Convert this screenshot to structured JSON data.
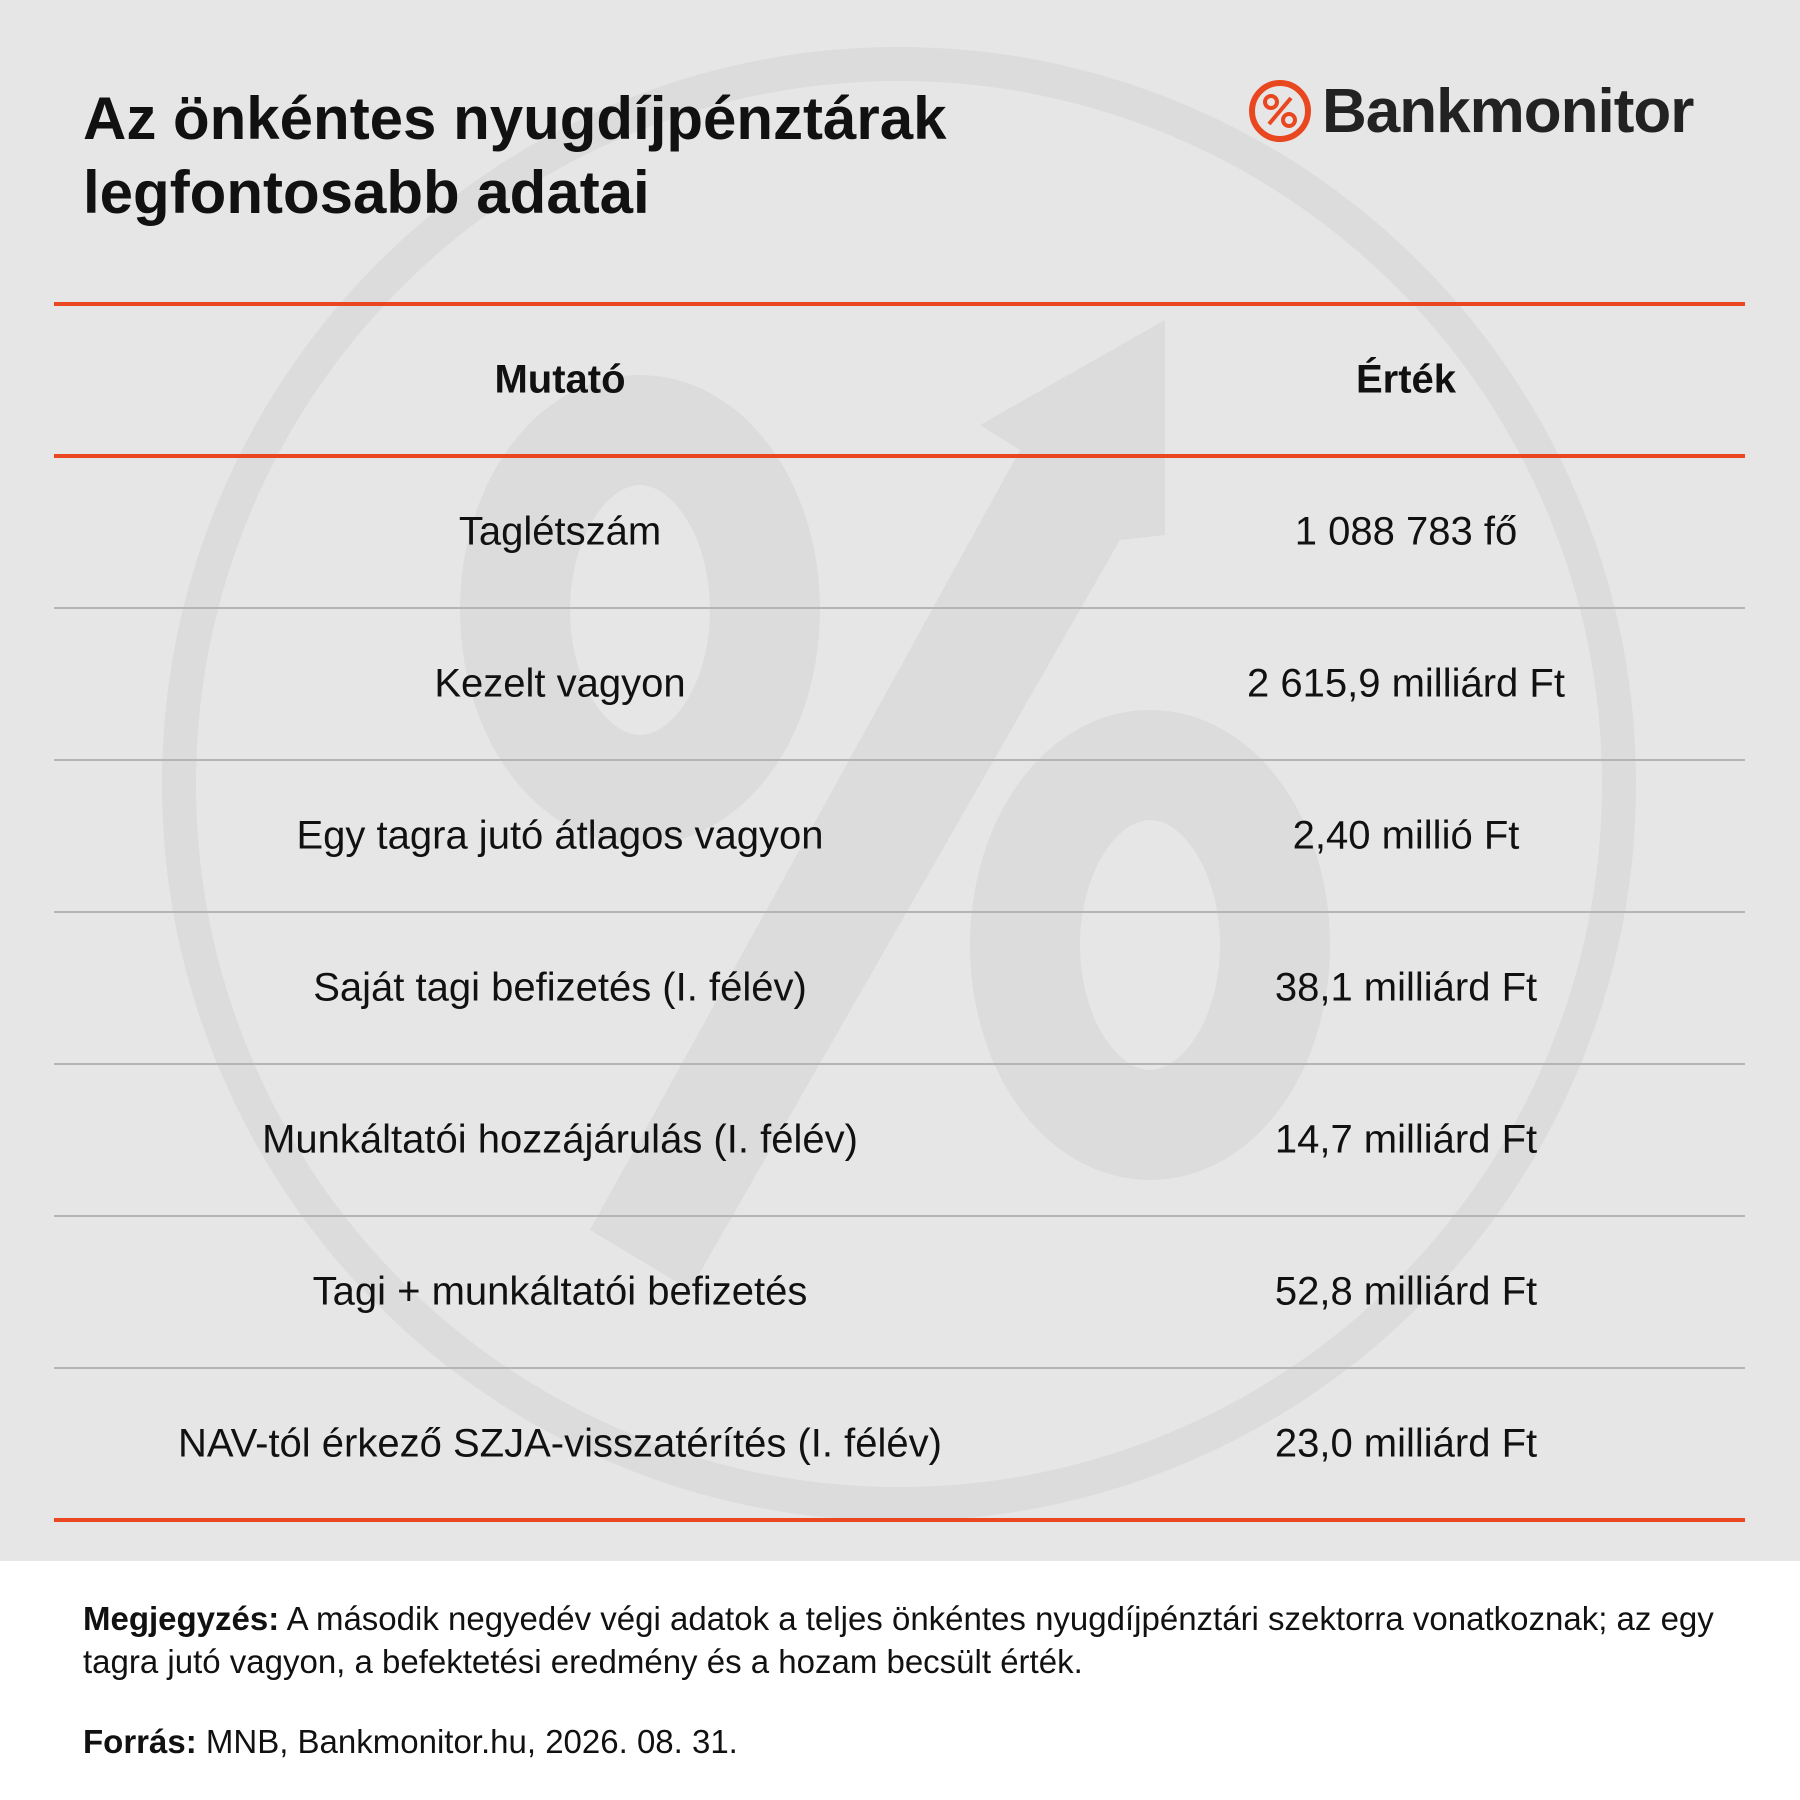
{
  "header": {
    "title_lines": [
      "Az önkéntes nyugdíjpénztárak",
      "legfontosabb adatai"
    ],
    "logo": "Bankmonitor"
  },
  "table": {
    "columns": [
      "Mutató",
      "Érték"
    ],
    "rows": [
      [
        "Taglétszám",
        "1 088 783 fő"
      ],
      [
        "Kezelt vagyon",
        "2 615,9 milliárd Ft"
      ],
      [
        "Egy tagra jutó átlagos vagyon",
        "2,40 millió Ft"
      ],
      [
        "Saját tagi befizetés (I. félév)",
        "38,1 milliárd Ft"
      ],
      [
        "Munkáltatói hozzájárulás (I. félév)",
        "14,7 milliárd Ft"
      ],
      [
        "Tagi + munkáltatói befizetés",
        "52,8 milliárd Ft"
      ],
      [
        "NAV-tól érkező SZJA-visszatérítés (I. félév)",
        "23,0 milliárd Ft"
      ]
    ]
  },
  "footer": {
    "note_label": "Megjegyzés:",
    "note_text": "A második negyedév végi adatok a teljes önkéntes nyugdíjpénztári szektorra vonatkoznak; az egy tagra jutó vagyon, a befektetési eredmény és a hozam becsült érték.",
    "source_label": "Forrás:",
    "source_text": "MNB, Bankmonitor.hu, 2026. 08. 31."
  }
}
